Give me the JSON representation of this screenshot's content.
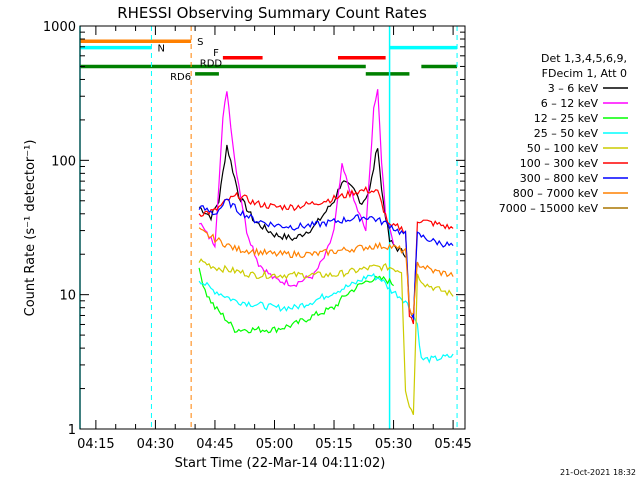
{
  "chart_data": {
    "type": "line",
    "title": "RHESSI Observing Summary Count Rates",
    "xlabel": "Start Time (22-Mar-14 04:11:02)",
    "ylabel": "Count Rate (s⁻¹ detector⁻¹)",
    "ylim": [
      1,
      1000
    ],
    "y_scale": "log",
    "xlim": [
      "04:11",
      "05:48"
    ],
    "x_ticks": [
      "04:15",
      "04:30",
      "04:45",
      "05:00",
      "05:15",
      "05:30",
      "05:45"
    ],
    "y_ticks": [
      "1",
      "10",
      "100",
      "1000"
    ],
    "footer": "21-Oct-2021 18:32",
    "legend": {
      "placement": "right",
      "header": [
        "Det 1,3,4,5,6,9,",
        "FDecim 1, Att 0"
      ],
      "entries": [
        {
          "name": "3 – 6 keV",
          "color": "#000000"
        },
        {
          "name": "6 – 12 keV",
          "color": "#ff00ff"
        },
        {
          "name": "12 – 25 keV",
          "color": "#00ff00"
        },
        {
          "name": "25 – 50 keV",
          "color": "#00ffff"
        },
        {
          "name": "50 – 100 keV",
          "color": "#cccc00"
        },
        {
          "name": "100 – 300 keV",
          "color": "#ff0000"
        },
        {
          "name": "300 – 800 keV",
          "color": "#0000ff"
        },
        {
          "name": "800 – 7000 keV",
          "color": "#ff8000"
        },
        {
          "name": "7000 – 15000 keV",
          "color": "#aa7700"
        }
      ]
    },
    "flag_bars": [
      {
        "label": "S",
        "color": "#ff8000",
        "level": 770,
        "segments": [
          [
            "04:11",
            "04:39"
          ]
        ]
      },
      {
        "label": "N",
        "color": "#00ffff",
        "level": 690,
        "segments": [
          [
            "04:11",
            "04:29"
          ],
          [
            "05:29",
            "05:46"
          ]
        ]
      },
      {
        "label": "F",
        "color": "#ff0000",
        "level": 580,
        "segments": [
          [
            "04:47",
            "04:57"
          ],
          [
            "05:16",
            "05:28"
          ]
        ]
      },
      {
        "label": "RDD",
        "color": "#008000",
        "level": 500,
        "segments": [
          [
            "04:11",
            "05:23"
          ],
          [
            "05:37",
            "05:46"
          ]
        ]
      },
      {
        "label": "RD6",
        "color": "#008000",
        "level": 440,
        "segments": [
          [
            "04:40",
            "04:46"
          ],
          [
            "05:23",
            "05:34"
          ]
        ]
      }
    ],
    "vertical_lines": [
      {
        "time": "04:11",
        "color": "#00ffff",
        "style": "solid"
      },
      {
        "time": "04:29",
        "color": "#00ffff",
        "style": "dashed"
      },
      {
        "time": "04:39",
        "color": "#ff8000",
        "style": "dashed"
      },
      {
        "time": "05:29",
        "color": "#00ffff",
        "style": "solid"
      },
      {
        "time": "05:46",
        "color": "#00ffff",
        "style": "dashed"
      }
    ],
    "series": [
      {
        "name": "3 – 6 keV",
        "color": "#000000",
        "x": [
          "04:41",
          "04:44",
          "04:46",
          "04:48",
          "04:51",
          "04:55",
          "05:00",
          "05:05",
          "05:10",
          "05:15",
          "05:17",
          "05:20",
          "05:22",
          "05:24",
          "05:26",
          "05:27",
          "05:29",
          "05:31",
          "05:33"
        ],
        "values": [
          45,
          38,
          50,
          130,
          55,
          35,
          28,
          26,
          32,
          50,
          70,
          60,
          48,
          60,
          130,
          60,
          25,
          22,
          20
        ]
      },
      {
        "name": "6 – 12 keV",
        "color": "#ff00ff",
        "x": [
          "04:41",
          "04:43",
          "04:45",
          "04:47",
          "04:48",
          "04:50",
          "04:53",
          "04:56",
          "05:00",
          "05:05",
          "05:10",
          "05:13",
          "05:15",
          "05:17",
          "05:20",
          "05:23",
          "05:24",
          "05:25",
          "05:26",
          "05:27",
          "05:28",
          "05:30"
        ],
        "values": [
          35,
          28,
          24,
          200,
          340,
          100,
          30,
          17,
          13,
          12,
          14,
          20,
          30,
          90,
          50,
          30,
          80,
          250,
          320,
          100,
          40,
          25
        ]
      },
      {
        "name": "12 – 25 keV",
        "color": "#00ff00",
        "x": [
          "04:41",
          "04:43",
          "04:45",
          "04:47",
          "04:50",
          "04:55",
          "05:00",
          "05:05",
          "05:10",
          "05:15",
          "05:18",
          "05:20",
          "05:22",
          "05:24",
          "05:26",
          "05:28",
          "05:30"
        ],
        "values": [
          15,
          10,
          8,
          7,
          5.5,
          5.5,
          5.5,
          6,
          7,
          8,
          10,
          11,
          12,
          13,
          13,
          13,
          12
        ]
      },
      {
        "name": "25 – 50 keV",
        "color": "#00ffff",
        "x": [
          "04:41",
          "04:44",
          "04:47",
          "04:50",
          "04:55",
          "05:00",
          "05:05",
          "05:10",
          "05:15",
          "05:20",
          "05:24",
          "05:27",
          "05:29",
          "05:31",
          "05:33",
          "05:35",
          "05:36",
          "05:37",
          "05:40",
          "05:45"
        ],
        "values": [
          13,
          11,
          10,
          9,
          8.5,
          8,
          8,
          9,
          10.5,
          12,
          14,
          13,
          11,
          10,
          9,
          7,
          6,
          3.3,
          3.3,
          3.5
        ]
      },
      {
        "name": "50 – 100 keV",
        "color": "#cccc00",
        "x": [
          "04:41",
          "04:45",
          "04:50",
          "04:55",
          "05:00",
          "05:05",
          "05:10",
          "05:15",
          "05:20",
          "05:25",
          "05:29",
          "05:32",
          "05:33",
          "05:34",
          "05:35",
          "05:36",
          "05:38",
          "05:41",
          "05:45"
        ],
        "values": [
          18,
          16,
          15,
          14,
          14,
          14,
          14,
          14,
          15,
          16,
          16,
          15,
          2,
          1.5,
          1.3,
          14,
          12,
          11,
          10
        ]
      },
      {
        "name": "100 – 300 keV",
        "color": "#ff0000",
        "x": [
          "04:41",
          "04:45",
          "04:48",
          "04:51",
          "04:55",
          "05:00",
          "05:05",
          "05:10",
          "05:15",
          "05:18",
          "05:20",
          "05:23",
          "05:26",
          "05:29",
          "05:31",
          "05:33",
          "05:34",
          "05:35",
          "05:36",
          "05:38",
          "05:42",
          "05:45"
        ],
        "values": [
          40,
          42,
          50,
          55,
          48,
          45,
          45,
          48,
          52,
          55,
          58,
          60,
          58,
          32,
          32,
          30,
          7,
          6,
          36,
          35,
          33,
          31
        ]
      },
      {
        "name": "300 – 800 keV",
        "color": "#0000ff",
        "x": [
          "04:41",
          "04:45",
          "04:48",
          "04:51",
          "04:55",
          "05:00",
          "05:05",
          "05:10",
          "05:15",
          "05:20",
          "05:24",
          "05:29",
          "05:31",
          "05:33",
          "05:34",
          "05:35",
          "05:36",
          "05:40",
          "05:45"
        ],
        "values": [
          45,
          40,
          50,
          42,
          36,
          33,
          32,
          33,
          35,
          37,
          38,
          33,
          30,
          28,
          8,
          7,
          28,
          25,
          23
        ]
      },
      {
        "name": "800 – 7000 keV",
        "color": "#ff8000",
        "x": [
          "04:41",
          "04:45",
          "04:50",
          "04:55",
          "05:00",
          "05:05",
          "05:10",
          "05:15",
          "05:20",
          "05:25",
          "05:29",
          "05:31",
          "05:33",
          "05:34",
          "05:35",
          "05:36",
          "05:40",
          "05:45"
        ],
        "values": [
          30,
          26,
          22,
          21,
          20,
          20,
          20,
          21,
          22,
          23,
          23,
          22,
          21,
          8,
          7,
          17,
          15,
          14
        ]
      }
    ]
  }
}
